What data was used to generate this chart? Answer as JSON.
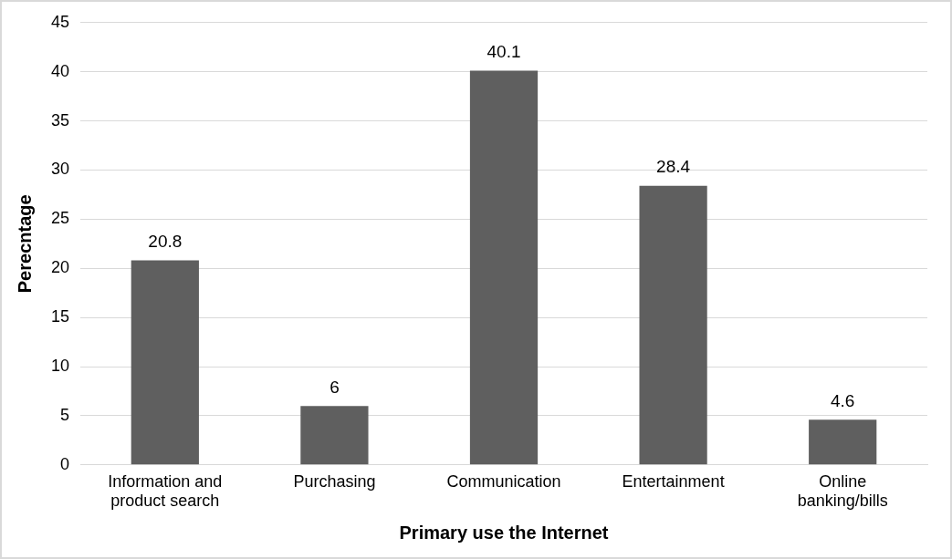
{
  "chart_data": {
    "type": "bar",
    "xlabel": "Primary use the Internet",
    "ylabel": "Perecntage",
    "categories": [
      "Information and product search",
      "Purchasing",
      "Communication",
      "Entertainment",
      "Online banking/bills"
    ],
    "values": [
      20.8,
      6,
      40.1,
      28.4,
      4.6
    ],
    "color": "#5f5f5f",
    "ylim": [
      0,
      45
    ],
    "yticks": [
      0,
      5,
      10,
      15,
      20,
      25,
      30,
      35,
      40,
      45
    ],
    "grid": "y",
    "data_labels": true,
    "legend": false
  }
}
